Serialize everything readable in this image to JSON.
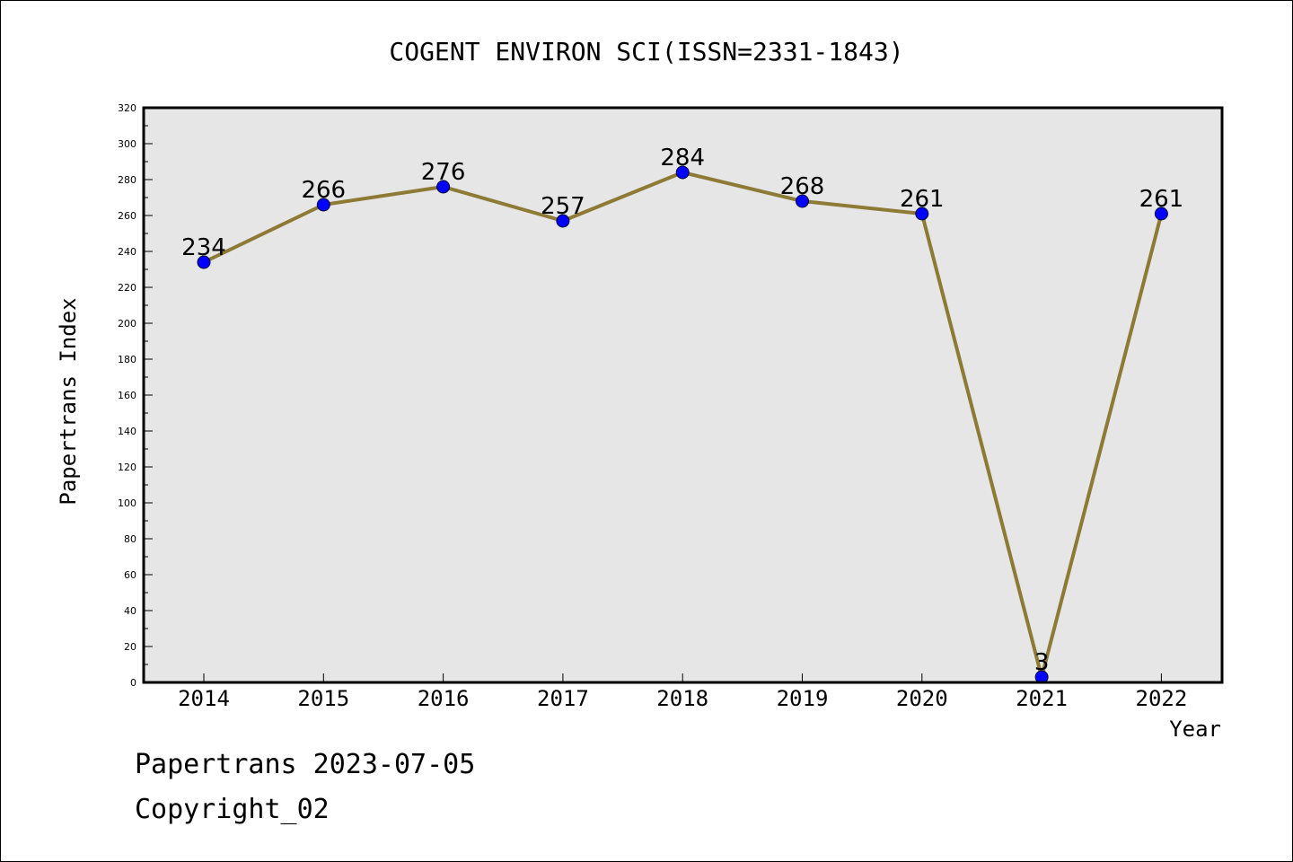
{
  "chart_data": {
    "type": "line",
    "title": "COGENT ENVIRON SCI(ISSN=2331-1843)",
    "xlabel": "Year",
    "ylabel": "Papertrans Index",
    "categories": [
      "2014",
      "2015",
      "2016",
      "2017",
      "2018",
      "2019",
      "2020",
      "2021",
      "2022"
    ],
    "series": [
      {
        "values": [
          234,
          266,
          276,
          257,
          284,
          268,
          261,
          3,
          261
        ],
        "labels": [
          "234",
          "266",
          "276",
          "257",
          "284",
          "268",
          "261",
          "3",
          "261"
        ]
      }
    ],
    "ylim": [
      0,
      320
    ],
    "yticks": [
      "0",
      "20",
      "40",
      "60",
      "80",
      "100",
      "120",
      "140",
      "160",
      "180",
      "200",
      "220",
      "240",
      "260",
      "280",
      "300",
      "320"
    ],
    "grid": false,
    "colors": {
      "line": "#8c7a35",
      "marker": "#0000ff",
      "plot_background": "#e6e6e6"
    }
  },
  "footer": {
    "date_line": "Papertrans 2023-07-05",
    "copyright_line": "Copyright_02"
  }
}
